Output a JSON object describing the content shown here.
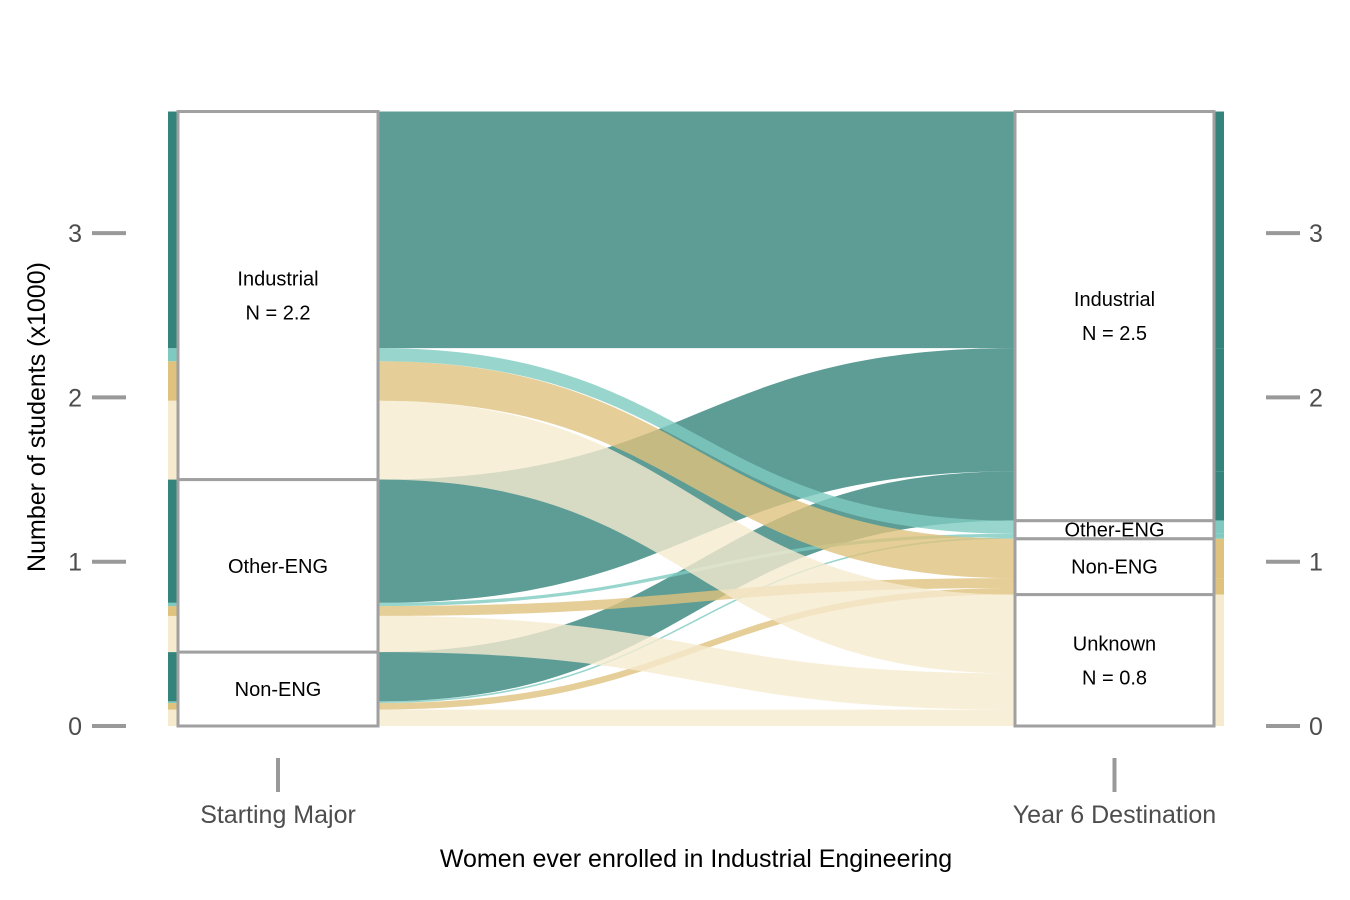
{
  "colors": {
    "industrial": "#35847C",
    "other_eng": "#7ECAC1",
    "non_eng": "#DFC27D",
    "unknown": "#F6EBCF",
    "stratum_border": "#A0A0A0",
    "tick": "#999999",
    "tick_text": "#4D4D4D"
  },
  "chart_data": {
    "type": "alluvial",
    "xlabel": "Women ever enrolled in Industrial Engineering",
    "ylabel": "Number of students (x1000)",
    "ylim": [
      0,
      3.78
    ],
    "yticks": [
      0,
      1,
      2,
      3
    ],
    "axes": [
      "Starting Major",
      "Year 6 Destination"
    ],
    "strata": {
      "start": [
        {
          "key": "non_eng",
          "label": "Non-ENG",
          "n": ""
        },
        {
          "key": "other_eng",
          "label": "Other-ENG",
          "n": ""
        },
        {
          "key": "industrial",
          "label": "Industrial",
          "n": "N = 2.2"
        }
      ],
      "end": [
        {
          "key": "unknown",
          "label": "Unknown",
          "n": "N = 0.8"
        },
        {
          "key": "non_eng",
          "label": "Non-ENG",
          "n": ""
        },
        {
          "key": "other_eng",
          "label": "Other-ENG",
          "n": ""
        },
        {
          "key": "industrial",
          "label": "Industrial",
          "n": "N = 2.5"
        }
      ]
    },
    "flows": [
      {
        "from": "non_eng",
        "to": "industrial",
        "fill": "industrial",
        "value": 0.3
      },
      {
        "from": "non_eng",
        "to": "other_eng",
        "fill": "other_eng",
        "value": 0.01
      },
      {
        "from": "non_eng",
        "to": "non_eng",
        "fill": "non_eng",
        "value": 0.04
      },
      {
        "from": "non_eng",
        "to": "unknown",
        "fill": "unknown",
        "value": 0.1
      },
      {
        "from": "other_eng",
        "to": "industrial",
        "fill": "industrial",
        "value": 0.75
      },
      {
        "from": "other_eng",
        "to": "other_eng",
        "fill": "other_eng",
        "value": 0.02
      },
      {
        "from": "other_eng",
        "to": "non_eng",
        "fill": "non_eng",
        "value": 0.06
      },
      {
        "from": "other_eng",
        "to": "unknown",
        "fill": "unknown",
        "value": 0.22
      },
      {
        "from": "industrial",
        "to": "industrial",
        "fill": "industrial",
        "value": 1.44
      },
      {
        "from": "industrial",
        "to": "other_eng",
        "fill": "other_eng",
        "value": 0.08
      },
      {
        "from": "industrial",
        "to": "non_eng",
        "fill": "non_eng",
        "value": 0.24
      },
      {
        "from": "industrial",
        "to": "unknown",
        "fill": "unknown",
        "value": 0.48
      }
    ]
  }
}
